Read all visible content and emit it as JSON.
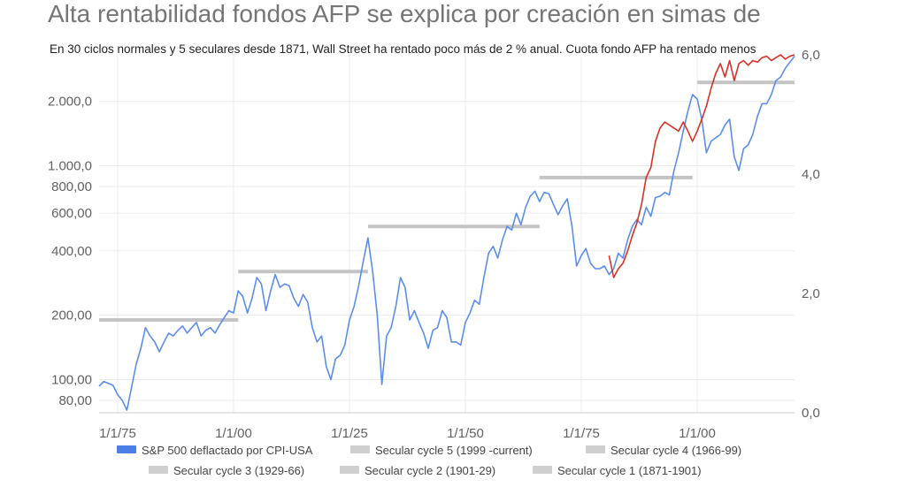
{
  "title": "Alta rentabilidad fondos AFP se explica por creación en simas de",
  "subtitle": "En 30 ciclos normales y 5 seculares desde 1871, Wall Street ha rentado poco más de 2 % anual. Cuota fondo AFP ha rentado menos",
  "chart_data": {
    "type": "line",
    "title": "Alta rentabilidad fondos AFP se explica por creación en simas de",
    "subtitle": "En 30 ciclos normales y 5 seculares desde 1871, Wall Street ha rentado poco más de 2 % anual. Cuota fondo AFP ha rentado menos",
    "y_scale": "log",
    "ylim": [
      70,
      3300
    ],
    "y_ticks": [
      {
        "value": 80,
        "label": "80,00"
      },
      {
        "value": 100,
        "label": "100,00"
      },
      {
        "value": 200,
        "label": "200,00"
      },
      {
        "value": 400,
        "label": "400,00"
      },
      {
        "value": 600,
        "label": "600,00"
      },
      {
        "value": 800,
        "label": "800,00"
      },
      {
        "value": 1000,
        "label": "1.000,0"
      },
      {
        "value": 2000,
        "label": "2.000,0"
      }
    ],
    "y2lim": [
      0,
      6
    ],
    "y2_ticks": [
      {
        "value": 0,
        "label": "0,0"
      },
      {
        "value": 2,
        "label": "2,0"
      },
      {
        "value": 4,
        "label": "4,0"
      },
      {
        "value": 6,
        "label": "6,0"
      }
    ],
    "xlim": [
      1871,
      2021
    ],
    "x_ticks": [
      {
        "value": 1875,
        "label": "1/1/75"
      },
      {
        "value": 1900,
        "label": "1/1/00"
      },
      {
        "value": 1925,
        "label": "1/1/25"
      },
      {
        "value": 1950,
        "label": "1/1/50"
      },
      {
        "value": 1975,
        "label": "1/1/75"
      },
      {
        "value": 2000,
        "label": "1/1/00"
      }
    ],
    "grid": true,
    "legend_position": "bottom",
    "series": [
      {
        "name": "S&P 500 deflactado por CPI-USA",
        "color": "#5b8def",
        "axis": "left",
        "points": [
          [
            1871,
            93
          ],
          [
            1872,
            98
          ],
          [
            1873,
            96
          ],
          [
            1874,
            94
          ],
          [
            1875,
            85
          ],
          [
            1876,
            80
          ],
          [
            1877,
            72
          ],
          [
            1878,
            92
          ],
          [
            1879,
            118
          ],
          [
            1880,
            140
          ],
          [
            1881,
            175
          ],
          [
            1882,
            160
          ],
          [
            1883,
            150
          ],
          [
            1884,
            135
          ],
          [
            1885,
            150
          ],
          [
            1886,
            165
          ],
          [
            1887,
            160
          ],
          [
            1888,
            170
          ],
          [
            1889,
            178
          ],
          [
            1890,
            165
          ],
          [
            1891,
            175
          ],
          [
            1892,
            185
          ],
          [
            1893,
            160
          ],
          [
            1894,
            170
          ],
          [
            1895,
            175
          ],
          [
            1896,
            165
          ],
          [
            1897,
            180
          ],
          [
            1898,
            195
          ],
          [
            1899,
            210
          ],
          [
            1900,
            205
          ],
          [
            1901,
            260
          ],
          [
            1902,
            245
          ],
          [
            1903,
            205
          ],
          [
            1904,
            240
          ],
          [
            1905,
            300
          ],
          [
            1906,
            280
          ],
          [
            1907,
            210
          ],
          [
            1908,
            260
          ],
          [
            1909,
            310
          ],
          [
            1910,
            270
          ],
          [
            1911,
            280
          ],
          [
            1912,
            275
          ],
          [
            1913,
            240
          ],
          [
            1914,
            220
          ],
          [
            1915,
            250
          ],
          [
            1916,
            230
          ],
          [
            1917,
            175
          ],
          [
            1918,
            150
          ],
          [
            1919,
            160
          ],
          [
            1920,
            115
          ],
          [
            1921,
            100
          ],
          [
            1922,
            125
          ],
          [
            1923,
            130
          ],
          [
            1924,
            145
          ],
          [
            1925,
            190
          ],
          [
            1926,
            220
          ],
          [
            1927,
            275
          ],
          [
            1928,
            360
          ],
          [
            1929,
            460
          ],
          [
            1930,
            320
          ],
          [
            1931,
            200
          ],
          [
            1932,
            95
          ],
          [
            1933,
            160
          ],
          [
            1934,
            175
          ],
          [
            1935,
            220
          ],
          [
            1936,
            300
          ],
          [
            1937,
            270
          ],
          [
            1938,
            190
          ],
          [
            1939,
            210
          ],
          [
            1940,
            185
          ],
          [
            1941,
            165
          ],
          [
            1942,
            140
          ],
          [
            1943,
            170
          ],
          [
            1944,
            175
          ],
          [
            1945,
            210
          ],
          [
            1946,
            195
          ],
          [
            1947,
            150
          ],
          [
            1948,
            150
          ],
          [
            1949,
            145
          ],
          [
            1950,
            185
          ],
          [
            1951,
            205
          ],
          [
            1952,
            235
          ],
          [
            1953,
            225
          ],
          [
            1954,
            300
          ],
          [
            1955,
            390
          ],
          [
            1956,
            420
          ],
          [
            1957,
            370
          ],
          [
            1958,
            450
          ],
          [
            1959,
            520
          ],
          [
            1960,
            500
          ],
          [
            1961,
            600
          ],
          [
            1962,
            530
          ],
          [
            1963,
            640
          ],
          [
            1964,
            720
          ],
          [
            1965,
            760
          ],
          [
            1966,
            680
          ],
          [
            1967,
            750
          ],
          [
            1968,
            740
          ],
          [
            1969,
            660
          ],
          [
            1970,
            590
          ],
          [
            1971,
            650
          ],
          [
            1972,
            700
          ],
          [
            1973,
            520
          ],
          [
            1974,
            340
          ],
          [
            1975,
            380
          ],
          [
            1976,
            410
          ],
          [
            1977,
            350
          ],
          [
            1978,
            330
          ],
          [
            1979,
            330
          ],
          [
            1980,
            340
          ],
          [
            1981,
            310
          ],
          [
            1982,
            330
          ],
          [
            1983,
            390
          ],
          [
            1984,
            370
          ],
          [
            1985,
            450
          ],
          [
            1986,
            520
          ],
          [
            1987,
            560
          ],
          [
            1988,
            530
          ],
          [
            1989,
            640
          ],
          [
            1990,
            580
          ],
          [
            1991,
            710
          ],
          [
            1992,
            720
          ],
          [
            1993,
            750
          ],
          [
            1994,
            730
          ],
          [
            1995,
            950
          ],
          [
            1996,
            1150
          ],
          [
            1997,
            1450
          ],
          [
            1998,
            1800
          ],
          [
            1999,
            2150
          ],
          [
            2000,
            2050
          ],
          [
            2001,
            1650
          ],
          [
            2002,
            1150
          ],
          [
            2003,
            1300
          ],
          [
            2004,
            1350
          ],
          [
            2005,
            1400
          ],
          [
            2006,
            1550
          ],
          [
            2007,
            1650
          ],
          [
            2008,
            1100
          ],
          [
            2009,
            950
          ],
          [
            2010,
            1200
          ],
          [
            2011,
            1250
          ],
          [
            2012,
            1400
          ],
          [
            2013,
            1700
          ],
          [
            2014,
            1950
          ],
          [
            2015,
            1950
          ],
          [
            2016,
            2150
          ],
          [
            2017,
            2500
          ],
          [
            2018,
            2600
          ],
          [
            2019,
            2850
          ],
          [
            2020,
            3050
          ],
          [
            2021,
            3250
          ]
        ]
      },
      {
        "name": "Cuota fondo AFP",
        "color": "#d93025",
        "axis": "left",
        "points": [
          [
            1981,
            380
          ],
          [
            1982,
            300
          ],
          [
            1983,
            330
          ],
          [
            1984,
            350
          ],
          [
            1985,
            400
          ],
          [
            1986,
            470
          ],
          [
            1987,
            540
          ],
          [
            1988,
            660
          ],
          [
            1989,
            880
          ],
          [
            1990,
            980
          ],
          [
            1991,
            1300
          ],
          [
            1992,
            1500
          ],
          [
            1993,
            1600
          ],
          [
            1994,
            1550
          ],
          [
            1995,
            1500
          ],
          [
            1996,
            1450
          ],
          [
            1997,
            1600
          ],
          [
            1998,
            1450
          ],
          [
            1999,
            1300
          ],
          [
            2000,
            1450
          ],
          [
            2001,
            1650
          ],
          [
            2002,
            1900
          ],
          [
            2003,
            2300
          ],
          [
            2004,
            2700
          ],
          [
            2005,
            3000
          ],
          [
            2006,
            2600
          ],
          [
            2007,
            3100
          ],
          [
            2008,
            2500
          ],
          [
            2009,
            3000
          ],
          [
            2010,
            3100
          ],
          [
            2011,
            2950
          ],
          [
            2012,
            3100
          ],
          [
            2013,
            3050
          ],
          [
            2014,
            3200
          ],
          [
            2015,
            3250
          ],
          [
            2016,
            3100
          ],
          [
            2017,
            3200
          ],
          [
            2018,
            3300
          ],
          [
            2019,
            3150
          ],
          [
            2020,
            3250
          ],
          [
            2021,
            3300
          ]
        ]
      },
      {
        "name": "Secular cycle 5 (1999 -current)",
        "color": "#c4c4c4",
        "axis": "left",
        "points": [
          [
            2000,
            2450
          ],
          [
            2021,
            2450
          ]
        ]
      },
      {
        "name": "Secular cycle 4 (1966-99)",
        "color": "#c4c4c4",
        "axis": "left",
        "points": [
          [
            1966,
            880
          ],
          [
            1999,
            880
          ]
        ]
      },
      {
        "name": "Secular cycle 3 (1929-66)",
        "color": "#c4c4c4",
        "axis": "left",
        "points": [
          [
            1929,
            520
          ],
          [
            1966,
            520
          ]
        ]
      },
      {
        "name": "Secular cycle 2 (1901-29)",
        "color": "#c4c4c4",
        "axis": "left",
        "points": [
          [
            1901,
            320
          ],
          [
            1929,
            320
          ]
        ]
      },
      {
        "name": "Secular cycle 1 (1871-1901)",
        "color": "#c4c4c4",
        "axis": "left",
        "points": [
          [
            1871,
            190
          ],
          [
            1901,
            190
          ]
        ]
      }
    ]
  },
  "legend": {
    "items": [
      {
        "label": "S&P 500 deflactado por CPI-USA",
        "color": "#4a80e6"
      },
      {
        "label": "Secular cycle 5 (1999 -current)",
        "color": "#cfcfcf"
      },
      {
        "label": "Secular cycle 4 (1966-99)",
        "color": "#cfcfcf"
      },
      {
        "label": "Secular cycle 3 (1929-66)",
        "color": "#cfcfcf"
      },
      {
        "label": "Secular cycle 2 (1901-29)",
        "color": "#cfcfcf"
      },
      {
        "label": "Secular cycle 1 (1871-1901)",
        "color": "#cfcfcf"
      }
    ]
  }
}
